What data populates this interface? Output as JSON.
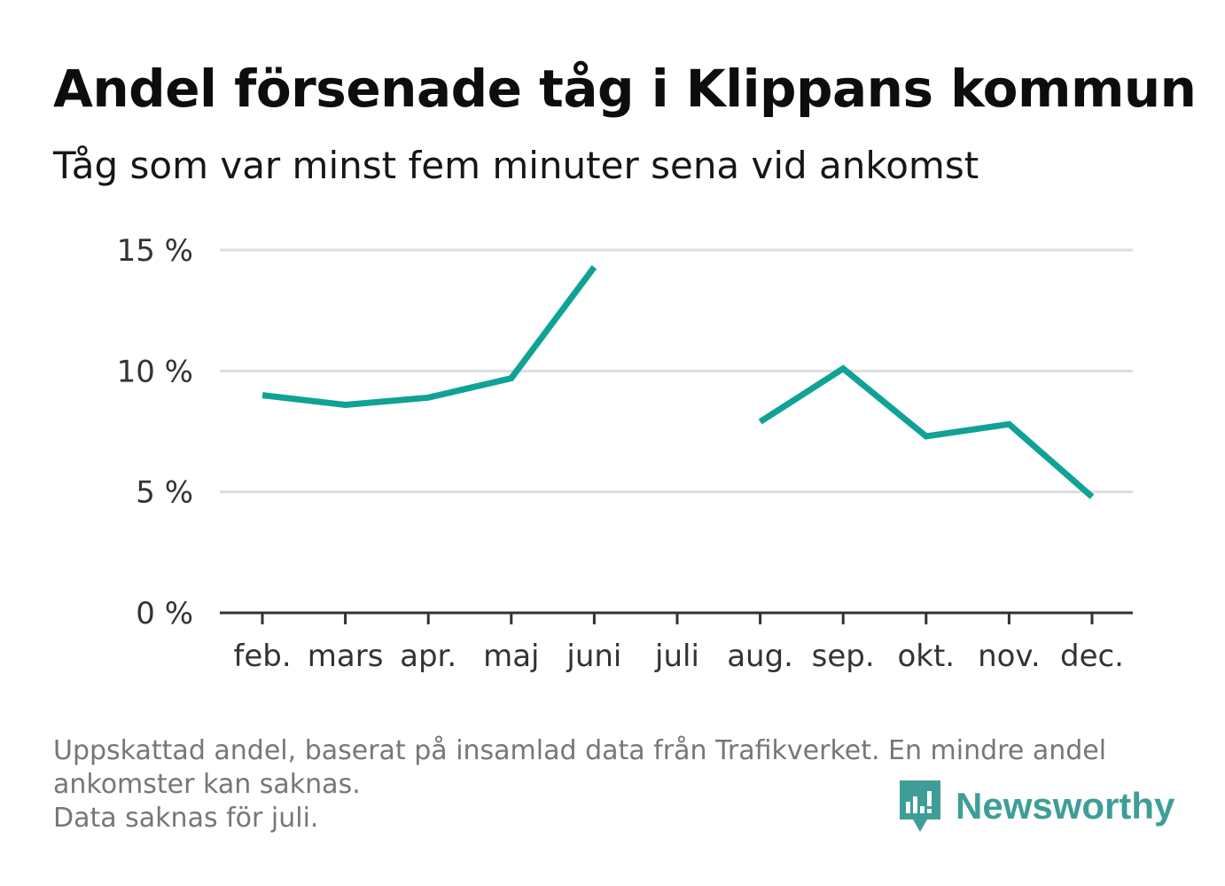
{
  "header": {
    "title": "Andel försenade tåg i Klippans kommun",
    "subtitle": "Tåg som var minst fem minuter sena vid ankomst"
  },
  "chart_data": {
    "type": "line",
    "categories": [
      "feb.",
      "mars",
      "apr.",
      "maj",
      "juni",
      "juli",
      "aug.",
      "sep.",
      "okt.",
      "nov.",
      "dec."
    ],
    "series": [
      {
        "values": [
          9.0,
          8.6,
          8.9,
          9.7,
          14.3,
          null,
          7.9,
          10.1,
          7.3,
          7.8,
          4.8
        ],
        "color": "#10a296"
      }
    ],
    "ylim": [
      0,
      15
    ],
    "yticks": [
      0,
      5,
      10,
      15
    ],
    "ytick_labels": [
      "0 %",
      "5 %",
      "10 %",
      "15 %"
    ],
    "xlabel": "",
    "ylabel": "",
    "grid": true,
    "colors": {
      "line": "#10a296",
      "grid": "#dddddd",
      "axis": "#333333",
      "tick_text": "#333333"
    }
  },
  "footer": {
    "note_line1": "Uppskattad andel, baserat på insamlad data från Trafikverket. En mindre andel",
    "note_line2": "ankomster kan saknas.",
    "note_line3": "Data saknas för juli."
  },
  "brand": {
    "name": "Newsworthy",
    "icon": "newsworthy-logo-icon",
    "color": "#3e9e97"
  }
}
